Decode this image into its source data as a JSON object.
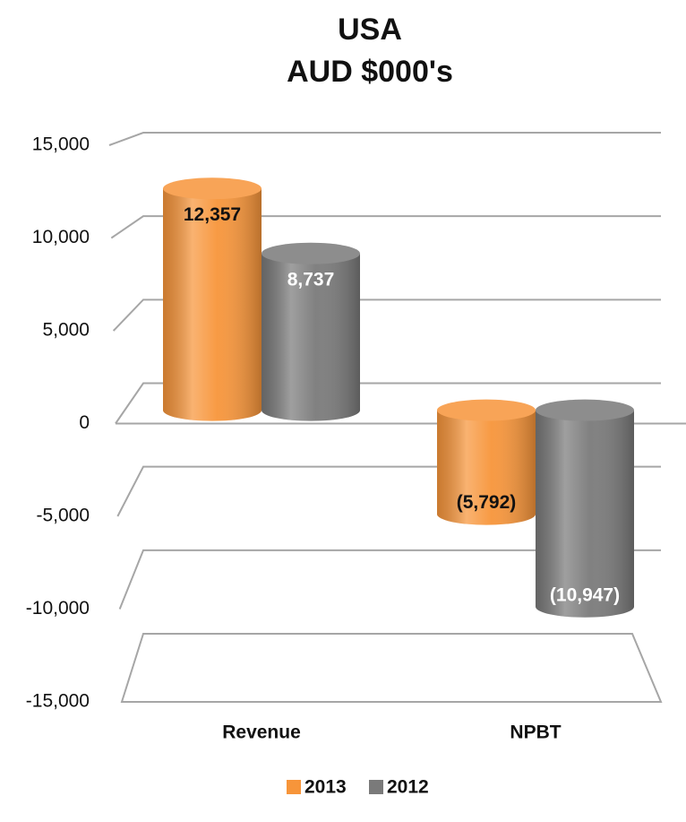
{
  "chart_data": {
    "type": "bar3d",
    "title": "USA",
    "subtitle": "AUD $000's",
    "categories": [
      "Revenue",
      "NPBT"
    ],
    "series": [
      {
        "name": "2013",
        "color": "#f7953a",
        "label_color": "#111111",
        "values": [
          12357,
          -5792
        ],
        "value_labels": [
          "12,357",
          "(5,792)"
        ]
      },
      {
        "name": "2012",
        "color": "#7a7a7a",
        "label_color": "#ffffff",
        "values": [
          8737,
          -10947
        ],
        "value_labels": [
          "8,737",
          "(10,947)"
        ]
      }
    ],
    "ylim": [
      -15000,
      15000
    ],
    "yticks": [
      {
        "value": 15000,
        "label": "15,000"
      },
      {
        "value": 10000,
        "label": "10,000"
      },
      {
        "value": 5000,
        "label": "5,000"
      },
      0,
      {
        "value": -5000,
        "label": "-5,000"
      },
      {
        "value": -10000,
        "label": "-10,000"
      },
      {
        "value": -15000,
        "label": "-15,000"
      }
    ],
    "grid": true,
    "legend": "bottom"
  }
}
